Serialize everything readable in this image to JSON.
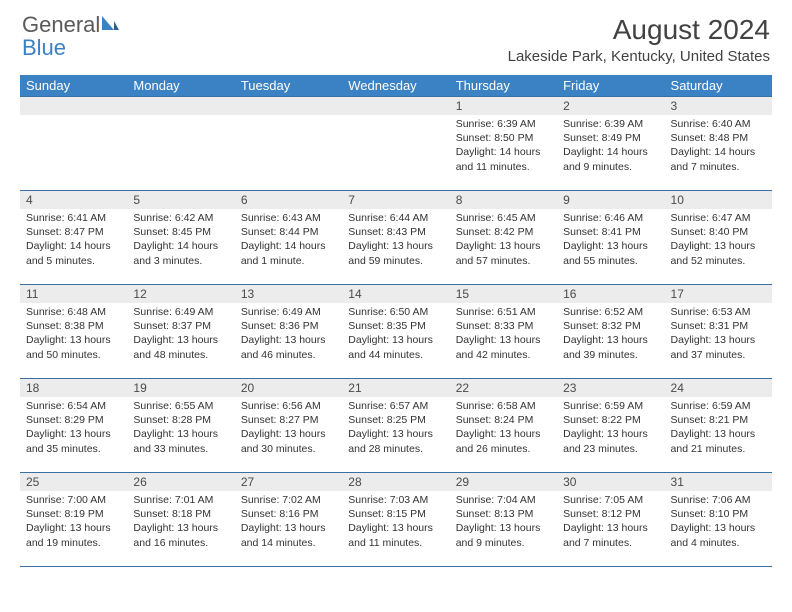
{
  "brand": {
    "part1": "General",
    "part2": "Blue"
  },
  "title": "August 2024",
  "subtitle": "Lakeside Park, Kentucky, United States",
  "style": {
    "header_bg": "#3b82c4",
    "header_fg": "#ffffff",
    "daynum_bg": "#ececec",
    "border_color": "#3b6fa0",
    "title_color": "#424242",
    "body_fontsize": 10.5
  },
  "day_names": [
    "Sunday",
    "Monday",
    "Tuesday",
    "Wednesday",
    "Thursday",
    "Friday",
    "Saturday"
  ],
  "weeks": [
    [
      null,
      null,
      null,
      null,
      {
        "n": "1",
        "sunrise": "6:39 AM",
        "sunset": "8:50 PM",
        "daylight": "14 hours and 11 minutes."
      },
      {
        "n": "2",
        "sunrise": "6:39 AM",
        "sunset": "8:49 PM",
        "daylight": "14 hours and 9 minutes."
      },
      {
        "n": "3",
        "sunrise": "6:40 AM",
        "sunset": "8:48 PM",
        "daylight": "14 hours and 7 minutes."
      }
    ],
    [
      {
        "n": "4",
        "sunrise": "6:41 AM",
        "sunset": "8:47 PM",
        "daylight": "14 hours and 5 minutes."
      },
      {
        "n": "5",
        "sunrise": "6:42 AM",
        "sunset": "8:45 PM",
        "daylight": "14 hours and 3 minutes."
      },
      {
        "n": "6",
        "sunrise": "6:43 AM",
        "sunset": "8:44 PM",
        "daylight": "14 hours and 1 minute."
      },
      {
        "n": "7",
        "sunrise": "6:44 AM",
        "sunset": "8:43 PM",
        "daylight": "13 hours and 59 minutes."
      },
      {
        "n": "8",
        "sunrise": "6:45 AM",
        "sunset": "8:42 PM",
        "daylight": "13 hours and 57 minutes."
      },
      {
        "n": "9",
        "sunrise": "6:46 AM",
        "sunset": "8:41 PM",
        "daylight": "13 hours and 55 minutes."
      },
      {
        "n": "10",
        "sunrise": "6:47 AM",
        "sunset": "8:40 PM",
        "daylight": "13 hours and 52 minutes."
      }
    ],
    [
      {
        "n": "11",
        "sunrise": "6:48 AM",
        "sunset": "8:38 PM",
        "daylight": "13 hours and 50 minutes."
      },
      {
        "n": "12",
        "sunrise": "6:49 AM",
        "sunset": "8:37 PM",
        "daylight": "13 hours and 48 minutes."
      },
      {
        "n": "13",
        "sunrise": "6:49 AM",
        "sunset": "8:36 PM",
        "daylight": "13 hours and 46 minutes."
      },
      {
        "n": "14",
        "sunrise": "6:50 AM",
        "sunset": "8:35 PM",
        "daylight": "13 hours and 44 minutes."
      },
      {
        "n": "15",
        "sunrise": "6:51 AM",
        "sunset": "8:33 PM",
        "daylight": "13 hours and 42 minutes."
      },
      {
        "n": "16",
        "sunrise": "6:52 AM",
        "sunset": "8:32 PM",
        "daylight": "13 hours and 39 minutes."
      },
      {
        "n": "17",
        "sunrise": "6:53 AM",
        "sunset": "8:31 PM",
        "daylight": "13 hours and 37 minutes."
      }
    ],
    [
      {
        "n": "18",
        "sunrise": "6:54 AM",
        "sunset": "8:29 PM",
        "daylight": "13 hours and 35 minutes."
      },
      {
        "n": "19",
        "sunrise": "6:55 AM",
        "sunset": "8:28 PM",
        "daylight": "13 hours and 33 minutes."
      },
      {
        "n": "20",
        "sunrise": "6:56 AM",
        "sunset": "8:27 PM",
        "daylight": "13 hours and 30 minutes."
      },
      {
        "n": "21",
        "sunrise": "6:57 AM",
        "sunset": "8:25 PM",
        "daylight": "13 hours and 28 minutes."
      },
      {
        "n": "22",
        "sunrise": "6:58 AM",
        "sunset": "8:24 PM",
        "daylight": "13 hours and 26 minutes."
      },
      {
        "n": "23",
        "sunrise": "6:59 AM",
        "sunset": "8:22 PM",
        "daylight": "13 hours and 23 minutes."
      },
      {
        "n": "24",
        "sunrise": "6:59 AM",
        "sunset": "8:21 PM",
        "daylight": "13 hours and 21 minutes."
      }
    ],
    [
      {
        "n": "25",
        "sunrise": "7:00 AM",
        "sunset": "8:19 PM",
        "daylight": "13 hours and 19 minutes."
      },
      {
        "n": "26",
        "sunrise": "7:01 AM",
        "sunset": "8:18 PM",
        "daylight": "13 hours and 16 minutes."
      },
      {
        "n": "27",
        "sunrise": "7:02 AM",
        "sunset": "8:16 PM",
        "daylight": "13 hours and 14 minutes."
      },
      {
        "n": "28",
        "sunrise": "7:03 AM",
        "sunset": "8:15 PM",
        "daylight": "13 hours and 11 minutes."
      },
      {
        "n": "29",
        "sunrise": "7:04 AM",
        "sunset": "8:13 PM",
        "daylight": "13 hours and 9 minutes."
      },
      {
        "n": "30",
        "sunrise": "7:05 AM",
        "sunset": "8:12 PM",
        "daylight": "13 hours and 7 minutes."
      },
      {
        "n": "31",
        "sunrise": "7:06 AM",
        "sunset": "8:10 PM",
        "daylight": "13 hours and 4 minutes."
      }
    ]
  ],
  "labels": {
    "sunrise": "Sunrise:",
    "sunset": "Sunset:",
    "daylight": "Daylight:"
  }
}
